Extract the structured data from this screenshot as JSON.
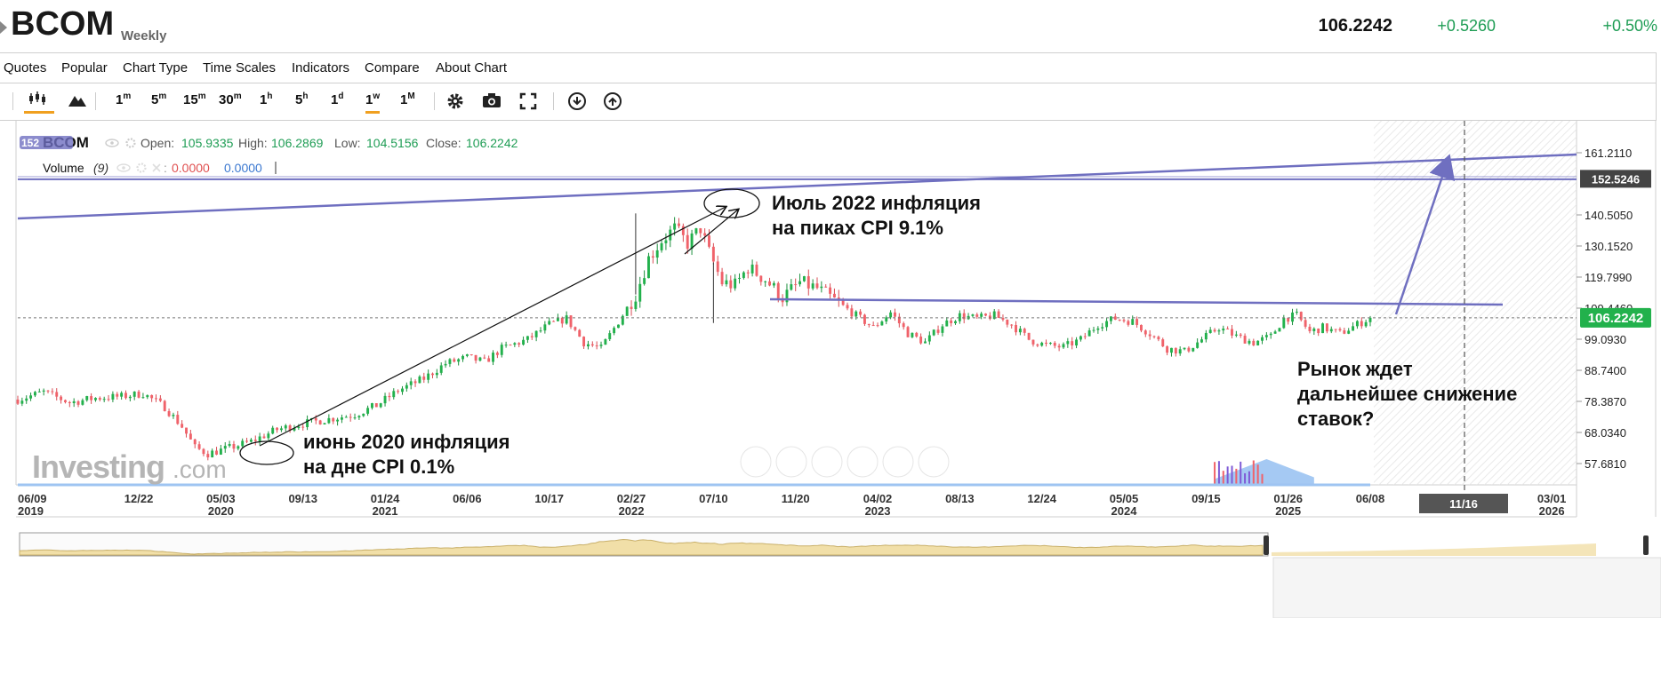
{
  "header": {
    "symbol": "BCOM",
    "interval": "Weekly",
    "price": "106.2242",
    "change": "+0.5260",
    "change_pct": "+0.50%"
  },
  "menu": [
    "Quotes",
    "Popular",
    "Chart Type",
    "Time Scales",
    "Indicators",
    "Compare",
    "About Chart"
  ],
  "toolbar": {
    "timeframes": [
      {
        "base": "1",
        "sup": "m"
      },
      {
        "base": "5",
        "sup": "m"
      },
      {
        "base": "15",
        "sup": "m"
      },
      {
        "base": "30",
        "sup": "m"
      },
      {
        "base": "1",
        "sup": "h"
      },
      {
        "base": "5",
        "sup": "h"
      },
      {
        "base": "1",
        "sup": "d"
      },
      {
        "base": "1",
        "sup": "w"
      },
      {
        "base": "1",
        "sup": "M"
      }
    ],
    "active_timeframe_index": 7,
    "icons": [
      "candles-icon",
      "mountain-icon",
      "gear-icon",
      "camera-icon",
      "fullscreen-icon",
      "download-icon",
      "upload-icon"
    ]
  },
  "legend": {
    "symbol": "BCOM",
    "open_label": "Open:",
    "open": "105.9335",
    "high_label": "High:",
    "high": "106.2869",
    "low_label": "Low:",
    "low": "104.5156",
    "close_label": "Close:",
    "close": "106.2242",
    "badge": "152",
    "volume_label": "Volume",
    "volume_param": "(9)",
    "volume_v1": "0.0000",
    "volume_v2": "0.0000"
  },
  "watermark": {
    "brand": "Investing",
    "suffix": ".com"
  },
  "annotations": {
    "top_line1": "Июль 2022 инфляция",
    "top_line2": "на пиках CPI 9.1%",
    "bottom_line1": "июнь 2020 инфляция",
    "bottom_line2": "на дне CPI 0.1%",
    "right_line1": "Рынок ждет",
    "right_line2": "дальнейшее снижение",
    "right_line3": "ставок?"
  },
  "chart_data": {
    "type": "candlestick",
    "interval": "weekly",
    "y_ticks": [
      161.211,
      152.5246,
      140.505,
      130.152,
      119.799,
      109.446,
      99.093,
      88.74,
      78.387,
      68.034,
      57.681
    ],
    "y_tick_labels": [
      "161.2110",
      "152.5246",
      "140.5050",
      "130.1520",
      "119.7990",
      "109.4460",
      "99.0930",
      "88.7400",
      "78.3870",
      "68.0340",
      "57.6810"
    ],
    "ylim": [
      52.5,
      166
    ],
    "last_price": 106.2242,
    "last_price_label": "106.2242",
    "target_level": 152.5246,
    "target_label": "152.5246",
    "x_tick_labels": [
      {
        "top": "06/09",
        "bottom": "2019"
      },
      {
        "top": "12/22",
        "bottom": ""
      },
      {
        "top": "05/03",
        "bottom": "2020"
      },
      {
        "top": "09/13",
        "bottom": ""
      },
      {
        "top": "01/24",
        "bottom": "2021"
      },
      {
        "top": "06/06",
        "bottom": ""
      },
      {
        "top": "10/17",
        "bottom": ""
      },
      {
        "top": "02/27",
        "bottom": "2022"
      },
      {
        "top": "07/10",
        "bottom": ""
      },
      {
        "top": "11/20",
        "bottom": ""
      },
      {
        "top": "04/02",
        "bottom": "2023"
      },
      {
        "top": "08/13",
        "bottom": ""
      },
      {
        "top": "12/24",
        "bottom": ""
      },
      {
        "top": "05/05",
        "bottom": "2024"
      },
      {
        "top": "09/15",
        "bottom": ""
      },
      {
        "top": "01/26",
        "bottom": "2025"
      },
      {
        "top": "06/08",
        "bottom": ""
      },
      {
        "top": "11/16",
        "bottom": ""
      },
      {
        "top": "03/01",
        "bottom": "2026"
      }
    ],
    "x_tick_weeks": [
      0,
      28,
      47,
      66,
      85,
      104,
      123,
      142,
      161,
      180,
      199,
      218,
      237,
      256,
      275,
      294,
      313,
      336,
      355
    ],
    "crosshair_label": "11/16",
    "last_candle_week": 313,
    "anchors": [
      [
        0,
        79.0
      ],
      [
        6,
        81.5
      ],
      [
        12,
        78.0
      ],
      [
        18,
        79.5
      ],
      [
        24,
        80.0
      ],
      [
        29,
        81.0
      ],
      [
        34,
        76.5
      ],
      [
        38,
        70.0
      ],
      [
        41,
        63.0
      ],
      [
        44,
        61.0
      ],
      [
        48,
        62.5
      ],
      [
        54,
        65.0
      ],
      [
        60,
        69.0
      ],
      [
        66,
        71.0
      ],
      [
        72,
        72.5
      ],
      [
        78,
        74.0
      ],
      [
        83,
        77.0
      ],
      [
        88,
        82.0
      ],
      [
        94,
        86.0
      ],
      [
        99,
        91.0
      ],
      [
        104,
        93.0
      ],
      [
        108,
        91.5
      ],
      [
        112,
        96.0
      ],
      [
        118,
        99.0
      ],
      [
        123,
        104.0
      ],
      [
        127,
        106.0
      ],
      [
        131,
        98.0
      ],
      [
        135,
        96.0
      ],
      [
        139,
        105.0
      ],
      [
        143,
        114.0
      ],
      [
        146,
        126.0
      ],
      [
        149,
        132.0
      ],
      [
        152,
        136.0
      ],
      [
        155,
        131.0
      ],
      [
        158,
        136.0
      ],
      [
        160,
        128.0
      ],
      [
        163,
        118.0
      ],
      [
        166,
        117.0
      ],
      [
        169,
        123.0
      ],
      [
        173,
        119.0
      ],
      [
        177,
        113.0
      ],
      [
        181,
        118.0
      ],
      [
        185,
        116.0
      ],
      [
        190,
        111.0
      ],
      [
        194,
        107.0
      ],
      [
        198,
        103.0
      ],
      [
        202,
        108.0
      ],
      [
        206,
        101.0
      ],
      [
        210,
        98.0
      ],
      [
        214,
        104.0
      ],
      [
        218,
        107.0
      ],
      [
        222,
        106.0
      ],
      [
        226,
        107.0
      ],
      [
        230,
        104.0
      ],
      [
        234,
        99.0
      ],
      [
        238,
        97.0
      ],
      [
        242,
        96.5
      ],
      [
        246,
        99.0
      ],
      [
        250,
        104.0
      ],
      [
        254,
        106.0
      ],
      [
        258,
        105.0
      ],
      [
        262,
        101.0
      ],
      [
        266,
        96.0
      ],
      [
        270,
        95.0
      ],
      [
        274,
        99.0
      ],
      [
        278,
        103.0
      ],
      [
        282,
        100.0
      ],
      [
        286,
        98.0
      ],
      [
        290,
        100.0
      ],
      [
        293,
        106.0
      ],
      [
        296,
        107.0
      ],
      [
        299,
        101.5
      ],
      [
        302,
        103.0
      ],
      [
        306,
        101.0
      ],
      [
        310,
        104.0
      ],
      [
        313,
        106.2
      ]
    ],
    "volume": {
      "start_week": 277,
      "end_week": 300,
      "peak_week": 289
    }
  }
}
